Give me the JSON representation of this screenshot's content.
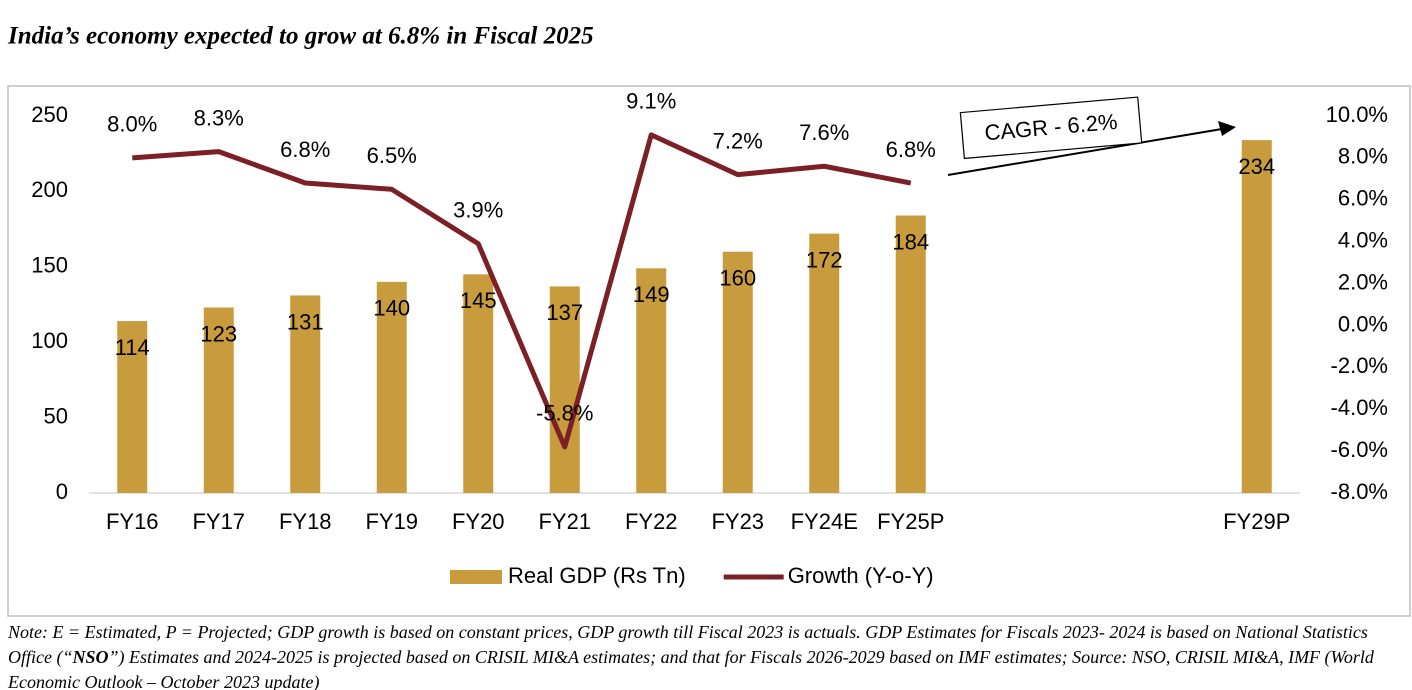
{
  "chart_data": {
    "type": "bar_line",
    "title": "India’s economy expected to grow at 6.8% in Fiscal 2025",
    "annotation": "CAGR - 6.2%",
    "categories": [
      "FY16",
      "FY17",
      "FY18",
      "FY19",
      "FY20",
      "FY21",
      "FY22",
      "FY23",
      "FY24E",
      "FY25P",
      null,
      null,
      null,
      "FY29P"
    ],
    "series": [
      {
        "name": "Real GDP (Rs Tn)",
        "type": "bar",
        "color": "#c89b3c",
        "values": [
          114,
          123,
          131,
          140,
          145,
          137,
          149,
          160,
          172,
          184,
          null,
          null,
          null,
          234
        ]
      },
      {
        "name": "Growth (Y-o-Y)",
        "type": "line",
        "axis": "y2",
        "color": "#7b2027",
        "values": [
          8.0,
          8.3,
          6.8,
          6.5,
          3.9,
          -5.8,
          9.1,
          7.2,
          7.6,
          6.8,
          null,
          null,
          null,
          null
        ],
        "value_labels": [
          "8.0%",
          "8.3%",
          "6.8%",
          "6.5%",
          "3.9%",
          "-5.8%",
          "9.1%",
          "7.2%",
          "7.6%",
          "6.8%",
          null,
          null,
          null,
          null
        ]
      }
    ],
    "ylim": [
      0,
      250
    ],
    "yticks": [
      0,
      50,
      100,
      150,
      200,
      250
    ],
    "y2lim": [
      -8,
      10
    ],
    "y2ticks": [
      {
        "value": -8,
        "label": "-8.0%"
      },
      {
        "value": -6,
        "label": "-6.0%"
      },
      {
        "value": -4,
        "label": "-4.0%"
      },
      {
        "value": -2,
        "label": "-2.0%"
      },
      {
        "value": 0,
        "label": "0.0%"
      },
      {
        "value": 2,
        "label": "2.0%"
      },
      {
        "value": 4,
        "label": "4.0%"
      },
      {
        "value": 6,
        "label": "6.0%"
      },
      {
        "value": 8,
        "label": "8.0%"
      },
      {
        "value": 10,
        "label": "10.0%"
      }
    ],
    "legend": "bottom",
    "grid": false
  },
  "note": [
    "Note: E = Estimated, P = Projected; GDP growth is based on constant prices, GDP growth till Fiscal 2023 is actuals. GDP Estimates for Fiscals 2023- 2024 is based on National Statistics Office (“",
    "NSO",
    "”) Estimates and 2024-2025 is projected based on CRISIL MI&A estimates; and that for Fiscals 2026-2029 based on IMF estimates; Source: NSO, CRISIL MI&A, IMF (World Economic Outlook – October 2023 update)"
  ]
}
